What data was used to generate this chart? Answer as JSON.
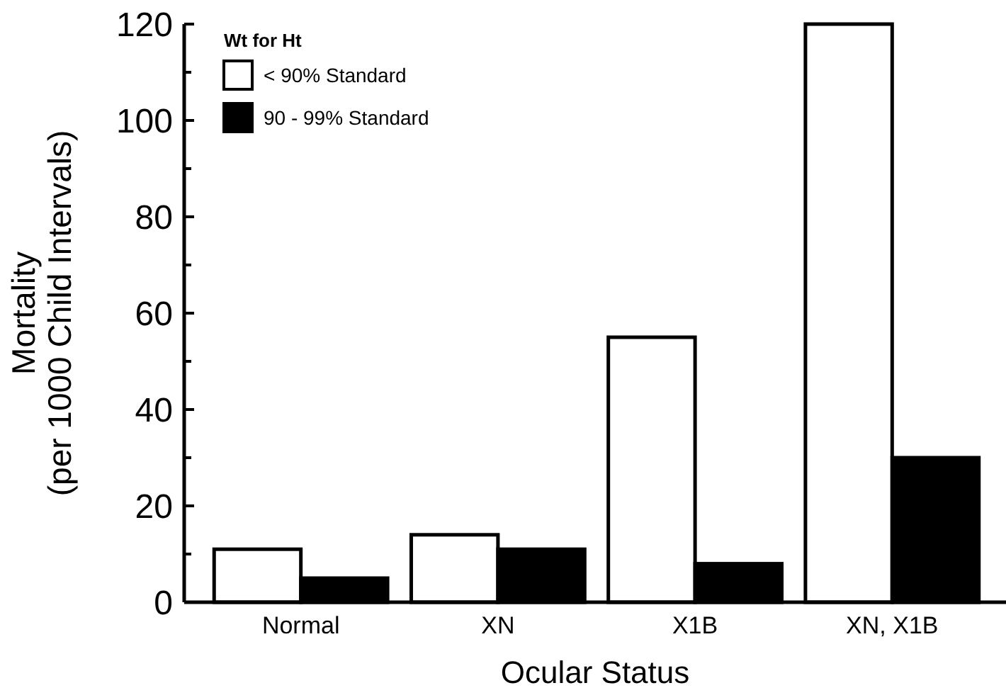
{
  "chart_data": {
    "type": "bar",
    "xlabel": "Ocular Status",
    "ylabel": "Mortality\n(per 1000 Child Intervals)",
    "legend_title": "Wt for Ht",
    "legend": "top left",
    "categories": [
      "Normal",
      "XN",
      "X1B",
      "XN, X1B"
    ],
    "series": [
      {
        "name": "< 90% Standard",
        "color": "#ffffff",
        "values": [
          11,
          14,
          55,
          120
        ]
      },
      {
        "name": "90 - 99% Standard",
        "color": "#000000",
        "values": [
          5,
          11,
          8,
          30
        ]
      }
    ],
    "ylim": [
      0,
      120
    ],
    "yticks": [
      0,
      20,
      40,
      60,
      80,
      100,
      120
    ]
  }
}
